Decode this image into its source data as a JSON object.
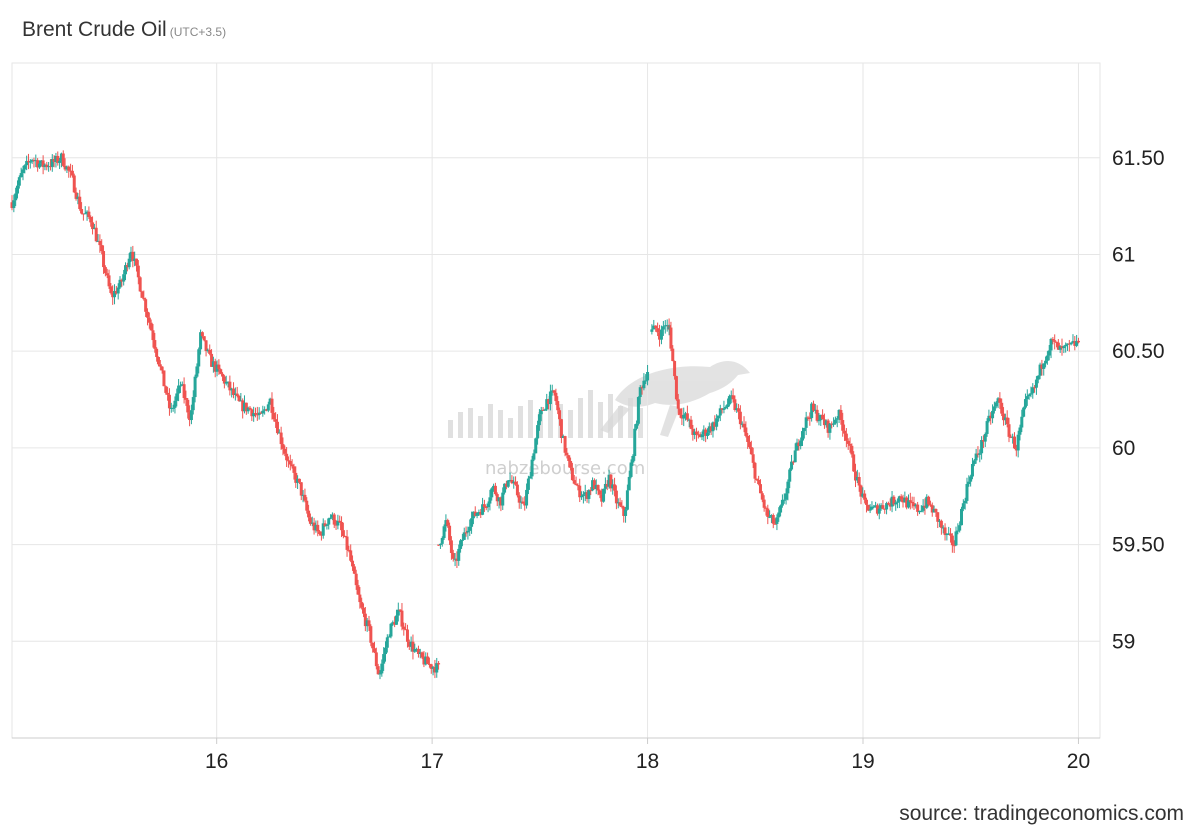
{
  "title": "Brent Crude Oil",
  "timezone": "(UTC+3.5)",
  "source": "source: tradingeconomics.com",
  "watermark": {
    "text": "nabzebourse.com"
  },
  "colors": {
    "up": "#26a69a",
    "down": "#ef5350",
    "grid": "#e6e6e6",
    "axis": "#cccccc"
  },
  "chart_data": {
    "type": "candlestick",
    "title": "Brent Crude Oil",
    "xlabel": "",
    "ylabel": "",
    "x_ticks": [
      "16",
      "17",
      "18",
      "19",
      "20"
    ],
    "x_tick_values": [
      16,
      17,
      18,
      19,
      20
    ],
    "xlim": [
      15.05,
      20.1
    ],
    "y_ticks": [
      "59",
      "59.50",
      "60",
      "60.50",
      "61",
      "61.50"
    ],
    "y_tick_values": [
      59,
      59.5,
      60,
      60.5,
      61,
      61.5
    ],
    "ylim": [
      58.5,
      61.99
    ],
    "grid": true,
    "series": [
      {
        "segment": 1,
        "x": [
          15.05,
          17.03
        ],
        "close_path": [
          61.27,
          61.42,
          61.5,
          61.46,
          61.47,
          61.5,
          61.4,
          61.22,
          61.18,
          61.0,
          60.78,
          60.85,
          61.03,
          60.82,
          60.62,
          60.4,
          60.18,
          60.33,
          60.15,
          60.58,
          60.45,
          60.38,
          60.3,
          60.22,
          60.2,
          60.15,
          60.25,
          60.06,
          59.9,
          59.8,
          59.62,
          59.55,
          59.65,
          59.6,
          59.45,
          59.2,
          59.05,
          58.82,
          59.05,
          59.15,
          59.0,
          58.92,
          58.88,
          58.86
        ]
      },
      {
        "segment": 2,
        "x": [
          17.03,
          18.0
        ],
        "close_path": [
          59.5,
          59.62,
          59.38,
          59.52,
          59.62,
          59.67,
          59.7,
          59.8,
          59.72,
          59.85,
          59.78,
          59.68,
          59.92,
          60.15,
          60.25,
          60.28,
          60.05,
          59.88,
          59.78,
          59.75,
          59.82,
          59.72,
          59.85,
          59.72,
          59.65,
          59.95,
          60.3,
          60.4
        ]
      },
      {
        "segment": 3,
        "x": [
          18.02,
          18.1
        ],
        "close_path": [
          60.6,
          60.62,
          60.58,
          60.65,
          60.6
        ]
      },
      {
        "segment": 4,
        "x": [
          18.1,
          20.0
        ],
        "close_path": [
          60.62,
          60.2,
          60.15,
          60.05,
          60.08,
          60.12,
          60.2,
          60.25,
          60.15,
          60.0,
          59.8,
          59.65,
          59.6,
          59.75,
          59.95,
          60.1,
          60.2,
          60.15,
          60.1,
          60.18,
          60.05,
          59.85,
          59.7,
          59.68,
          59.7,
          59.72,
          59.75,
          59.7,
          59.68,
          59.72,
          59.65,
          59.55,
          59.5,
          59.7,
          59.9,
          60.0,
          60.15,
          60.25,
          60.1,
          60.0,
          60.22,
          60.3,
          60.45,
          60.55,
          60.5,
          60.52,
          60.55
        ]
      }
    ]
  }
}
